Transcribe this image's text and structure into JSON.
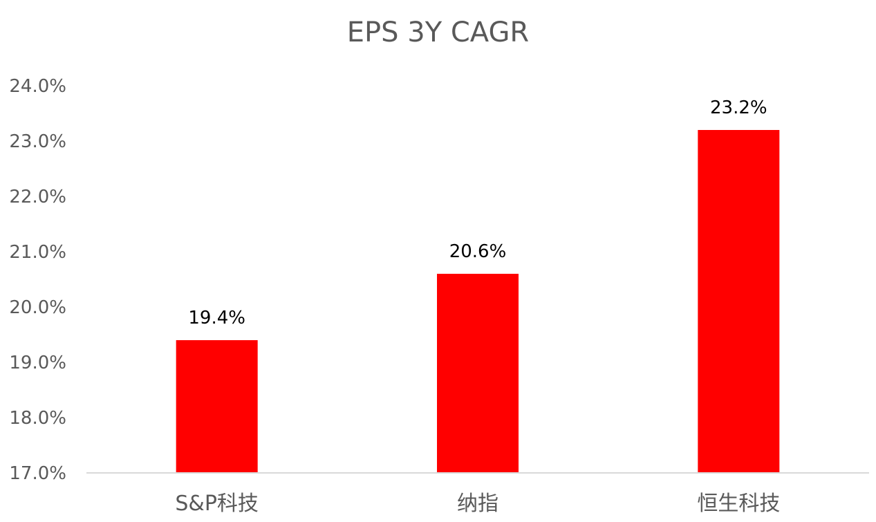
{
  "chart_data": {
    "type": "bar",
    "title": "EPS 3Y CAGR",
    "xlabel": "",
    "ylabel": "",
    "categories": [
      "S&P科技",
      "纳指",
      "恒生科技"
    ],
    "values": [
      19.4,
      20.6,
      23.2
    ],
    "data_labels": [
      "19.4%",
      "20.6%",
      "23.2%"
    ],
    "ylim": [
      17.0,
      24.0
    ],
    "yticks": [
      17.0,
      18.0,
      19.0,
      20.0,
      21.0,
      22.0,
      23.0,
      24.0
    ],
    "ytick_labels": [
      "17.0%",
      "18.0%",
      "19.0%",
      "20.0%",
      "21.0%",
      "22.0%",
      "23.0%",
      "24.0%"
    ],
    "grid": false,
    "legend": "none",
    "bar_color": "#FF0000",
    "axis_color": "#D9D9D9"
  }
}
